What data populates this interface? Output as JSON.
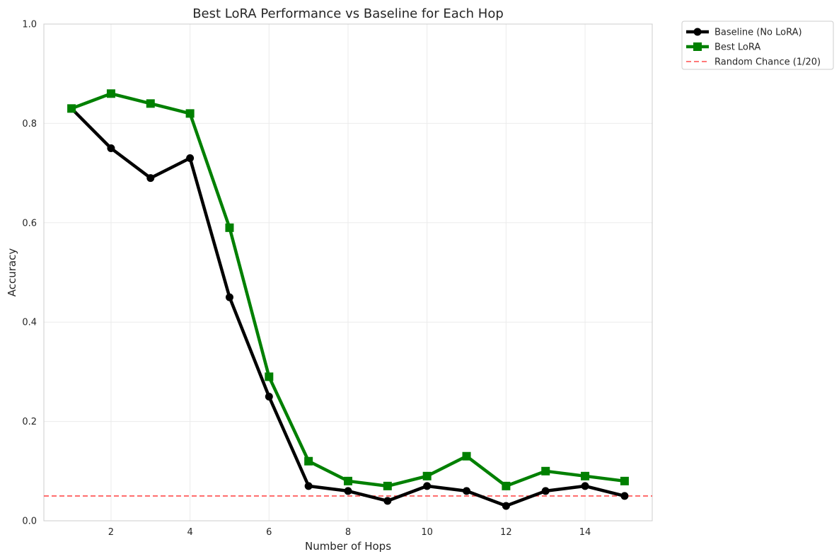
{
  "chart_data": {
    "type": "line",
    "title": "Best LoRA Performance vs Baseline for Each Hop",
    "xlabel": "Number of Hops",
    "ylabel": "Accuracy",
    "x": [
      1,
      2,
      3,
      4,
      5,
      6,
      7,
      8,
      9,
      10,
      11,
      12,
      13,
      14,
      15
    ],
    "xlim": [
      0.3,
      15.7
    ],
    "ylim": [
      0.0,
      1.0
    ],
    "xticks": [
      2,
      4,
      6,
      8,
      10,
      12,
      14
    ],
    "yticks": [
      0.0,
      0.2,
      0.4,
      0.6,
      0.8,
      1.0
    ],
    "xtick_labels": [
      "2",
      "4",
      "6",
      "8",
      "10",
      "12",
      "14"
    ],
    "ytick_labels": [
      "0.0",
      "0.2",
      "0.4",
      "0.6",
      "0.8",
      "1.0"
    ],
    "grid": true,
    "legend_position": "outside-top-right",
    "series": [
      {
        "name": "Baseline (No LoRA)",
        "color": "#000000",
        "marker": "circle",
        "values": [
          0.83,
          0.75,
          0.69,
          0.73,
          0.45,
          0.25,
          0.07,
          0.06,
          0.04,
          0.07,
          0.06,
          0.03,
          0.06,
          0.07,
          0.05
        ]
      },
      {
        "name": "Best LoRA",
        "color": "#008000",
        "marker": "square",
        "values": [
          0.83,
          0.86,
          0.84,
          0.82,
          0.59,
          0.29,
          0.12,
          0.08,
          0.07,
          0.09,
          0.13,
          0.07,
          0.1,
          0.09,
          0.08
        ]
      }
    ],
    "reference_line": {
      "name": "Random Chance (1/20)",
      "value": 0.05,
      "color": "#ff4d4d",
      "style": "dashed"
    }
  }
}
